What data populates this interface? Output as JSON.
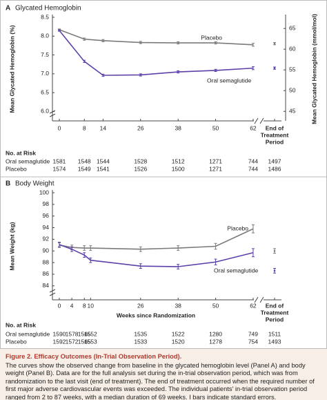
{
  "chart_data": [
    {
      "type": "line",
      "panel_label": "A",
      "title": "Glycated Hemoglobin",
      "ylabel": "Mean Glycated Hemoglobin (%)",
      "y2label": "Mean Glycated Hemoglobin (mmol/mol)",
      "x": [
        0,
        8,
        14,
        26,
        38,
        50,
        62
      ],
      "xticks": [
        0,
        8,
        14,
        26,
        38,
        50,
        62
      ],
      "xlim": [
        -2.2,
        64
      ],
      "ylim": [
        5.75,
        8.5
      ],
      "yticks": [
        {
          "value": 6,
          "label": "6.0"
        },
        {
          "value": 6.5,
          "label": "6.5"
        },
        {
          "value": 7,
          "label": "7.0"
        },
        {
          "value": 7.5,
          "label": "7.5"
        },
        {
          "value": 8,
          "label": "8.0"
        },
        {
          "value": 8.5,
          "label": "8.5"
        }
      ],
      "y2lim": [
        42.7,
        67.7
      ],
      "y2ticks": [
        45,
        50,
        55,
        60,
        65
      ],
      "end_label": [
        "End of",
        "Treatment",
        "Period"
      ],
      "series": [
        {
          "name": "Placebo",
          "color": "#7a7a7a",
          "values": [
            8.17,
            7.92,
            7.88,
            7.83,
            7.82,
            7.82,
            7.77
          ],
          "errors": [
            0.02,
            0.03,
            0.03,
            0.03,
            0.03,
            0.03,
            0.04
          ],
          "end_value": 7.8,
          "end_error": 0.03
        },
        {
          "name": "Oral semaglutide",
          "color": "#5b3fa8",
          "values": [
            8.15,
            7.33,
            6.96,
            6.97,
            7.05,
            7.09,
            7.15
          ],
          "errors": [
            0.02,
            0.03,
            0.03,
            0.03,
            0.03,
            0.03,
            0.04
          ],
          "end_value": 7.15,
          "end_error": 0.03
        }
      ],
      "risk_table": {
        "title": "No. at Risk",
        "rows": [
          {
            "name": "Oral semaglutide",
            "values": [
              "1581",
              "1548",
              "1544",
              "1528",
              "1512",
              "1271",
              "744",
              "1497"
            ]
          },
          {
            "name": "Placebo",
            "values": [
              "1574",
              "1549",
              "1541",
              "1526",
              "1500",
              "1271",
              "744",
              "1486"
            ]
          }
        ]
      }
    },
    {
      "type": "line",
      "panel_label": "B",
      "title": "Body Weight",
      "ylabel": "Mean Weight (kg)",
      "xlabel": "Weeks since Randomization",
      "x": [
        0,
        4,
        8,
        10,
        26,
        38,
        50,
        62
      ],
      "xticks": [
        0,
        4,
        8,
        10,
        26,
        38,
        50,
        62
      ],
      "xlim": [
        -2.2,
        64
      ],
      "ylim": [
        81.6,
        100
      ],
      "yticks": [
        84,
        86,
        88,
        90,
        92,
        94,
        96,
        98,
        100
      ],
      "end_label": [
        "End of",
        "Treatment",
        "Period"
      ],
      "series": [
        {
          "name": "Placebo",
          "color": "#7a7a7a",
          "values": [
            91.0,
            90.6,
            90.5,
            90.5,
            90.3,
            90.5,
            90.8,
            93.8
          ],
          "errors": [
            0.4,
            0.4,
            0.4,
            0.4,
            0.4,
            0.4,
            0.5,
            0.7
          ],
          "end_value": 90.0,
          "end_error": 0.4
        },
        {
          "name": "Oral semaglutide",
          "color": "#5b3fa8",
          "values": [
            91.1,
            90.3,
            89.3,
            88.4,
            87.4,
            87.3,
            88.1,
            89.7
          ],
          "errors": [
            0.4,
            0.4,
            0.4,
            0.4,
            0.4,
            0.4,
            0.5,
            0.7
          ],
          "end_value": 86.6,
          "end_error": 0.4
        }
      ],
      "risk_table": {
        "title": "No. at Risk",
        "rows": [
          {
            "name": "Oral semaglutide",
            "values": [
              "1590",
              "1578",
              "1565",
              "1552",
              "1535",
              "1522",
              "1280",
              "749",
              "1511"
            ]
          },
          {
            "name": "Placebo",
            "values": [
              "1592",
              "1572",
              "1565",
              "1553",
              "1533",
              "1520",
              "1278",
              "754",
              "1493"
            ]
          }
        ]
      }
    }
  ],
  "caption": {
    "heading": "Figure 2. Efficacy Outcomes (In-Trial Observation Period).",
    "body": "The curves show the observed change from baseline in the glycated hemoglobin level (Panel A) and body weight (Panel B). Data are for the full analysis set during the in-trial observation period, which was from randomization to the last visit (end of treatment). The end of treatment occurred when the required number of first major adverse cardiovascular events was exceeded. The individual patients' in-trial observation period ranged from 2 to 87 weeks, with a median duration of 69 weeks. I bars indicate standard errors."
  }
}
